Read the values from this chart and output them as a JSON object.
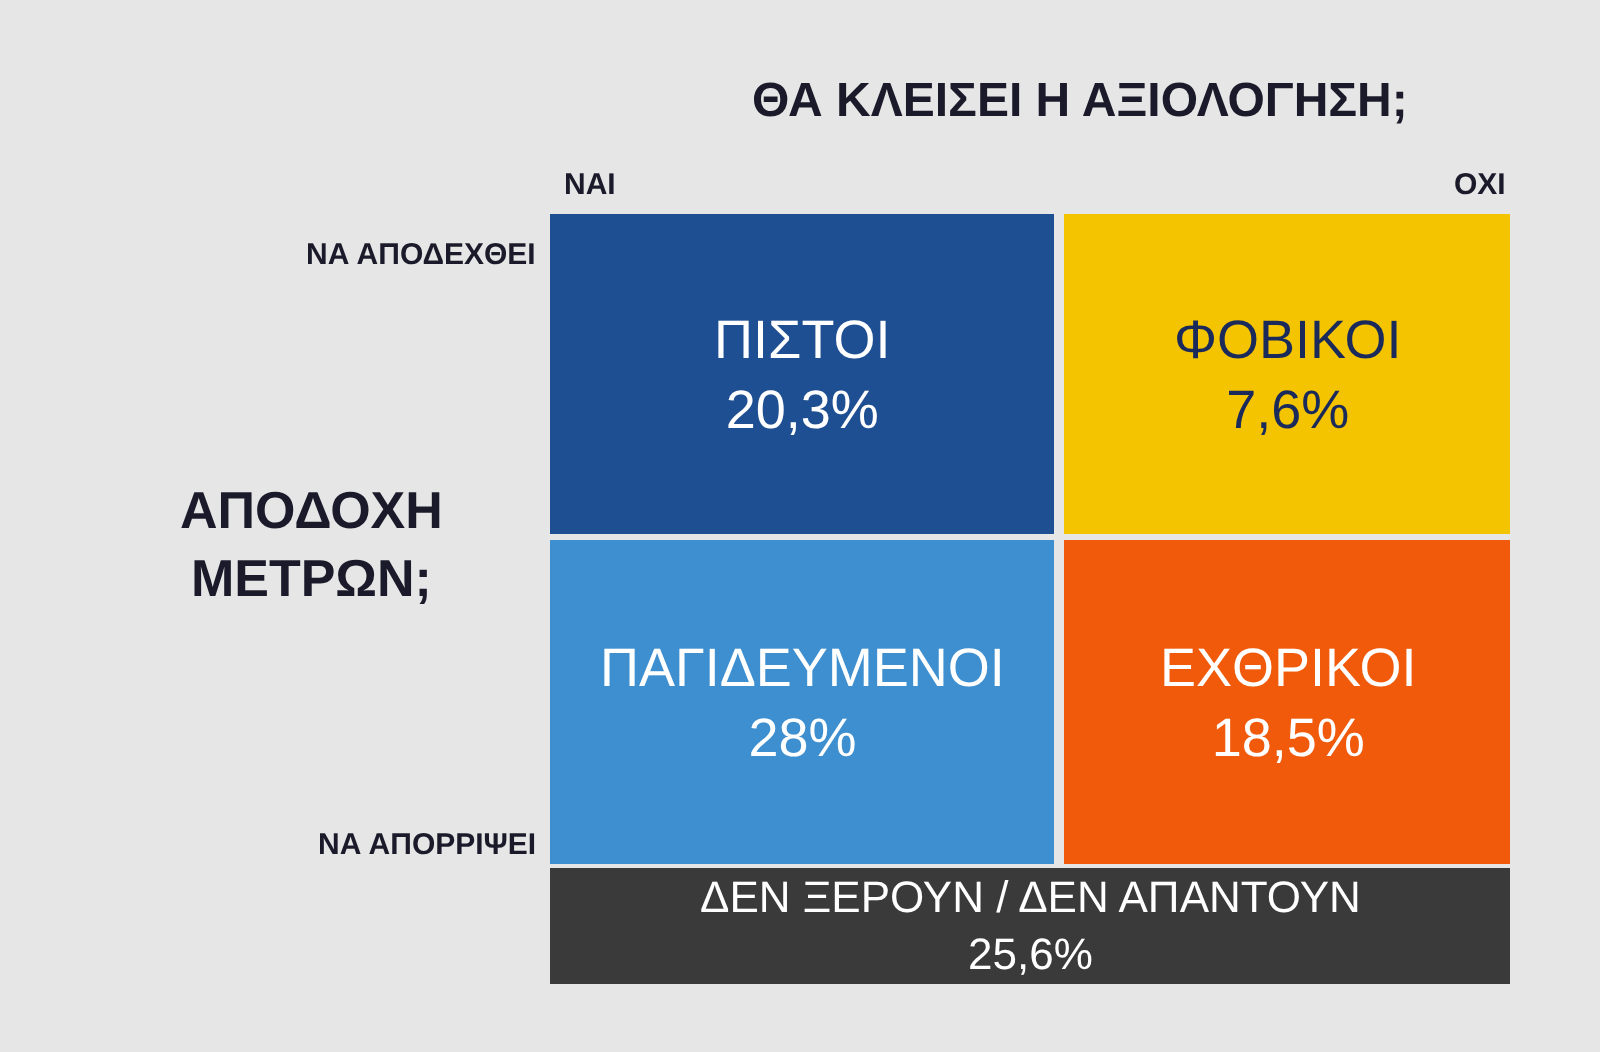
{
  "chart_data": {
    "type": "other",
    "title": "ΘΑ ΚΛΕΙΣΕΙ Η ΑΞΙΟΛΟΓΗΣΗ;",
    "ylabel": "ΑΠΟΔΟΧΗ\nΜΕΤΡΩΝ;",
    "categories": [
      "ΠΙΣΤΟΙ",
      "ΦΟΒΙΚΟΙ",
      "ΠΑΓΙΔΕΥΜΕΝΟΙ",
      "ΕΧΘΡΙΚΟΙ",
      "ΔΕΝ ΞΕΡΟΥΝ / ΔΕΝ ΑΠΑΝΤΟΥΝ"
    ],
    "values": [
      20.3,
      7.6,
      28,
      18.5,
      25.6
    ],
    "value_labels": [
      "20,3%",
      "7,6%",
      "28%",
      "18,5%",
      "25,6%"
    ],
    "colors": [
      "#1f4f93",
      "#f5c400",
      "#3d8fd0",
      "#f05a0a",
      "#3a3a3a"
    ],
    "annotations": [
      "ΝΑΙ",
      "ΟΧΙ",
      "ΝΑ ΑΠΟΔΕΧΘΕΙ",
      "ΝΑ ΑΠΟΡΡΙΨΕΙ"
    ]
  }
}
